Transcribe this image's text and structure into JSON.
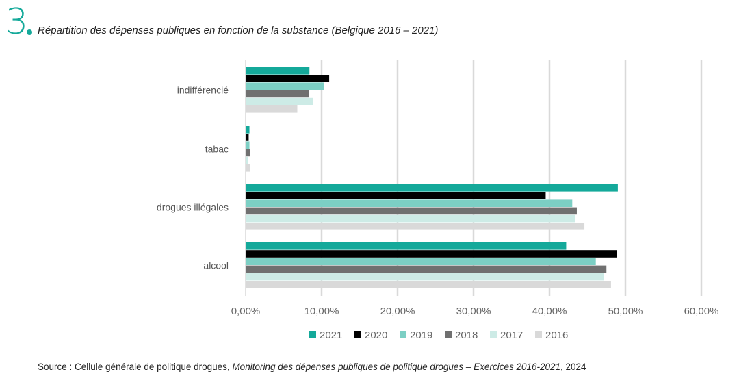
{
  "figure": {
    "number": "3",
    "title": "Répartition des dépenses publiques en fonction de la substance (Belgique 2016 – 2021)"
  },
  "colors": {
    "accent": "#14a99a",
    "2021": "#14a99a",
    "2020": "#000000",
    "2019": "#7ccfc4",
    "2018": "#707070",
    "2017": "#cdebe6",
    "2016": "#d9d9d9"
  },
  "chart_data": {
    "type": "bar",
    "orientation": "horizontal",
    "categories": [
      "indifférencié",
      "tabac",
      "drogues illégales",
      "alcool"
    ],
    "series": [
      {
        "name": "2021",
        "values": [
          8.4,
          0.5,
          49.0,
          42.2
        ]
      },
      {
        "name": "2020",
        "values": [
          11.0,
          0.4,
          39.5,
          48.9
        ]
      },
      {
        "name": "2019",
        "values": [
          10.3,
          0.5,
          43.0,
          46.1
        ]
      },
      {
        "name": "2018",
        "values": [
          8.3,
          0.6,
          43.6,
          47.5
        ]
      },
      {
        "name": "2017",
        "values": [
          8.9,
          0.3,
          43.4,
          47.2
        ]
      },
      {
        "name": "2016",
        "values": [
          6.8,
          0.6,
          44.6,
          48.1
        ]
      }
    ],
    "xticks": [
      "0,00%",
      "10,00%",
      "20,00%",
      "30,00%",
      "40,00%",
      "50,00%",
      "60,00%"
    ],
    "xlim": [
      0,
      60
    ],
    "grid": true,
    "legend_position": "bottom"
  },
  "source": {
    "prefix": "Source : Cellule générale de politique drogues, ",
    "italic": "Monitoring des dépenses publiques de politique drogues – Exercices 2016-2021",
    "suffix": ", 2024"
  }
}
